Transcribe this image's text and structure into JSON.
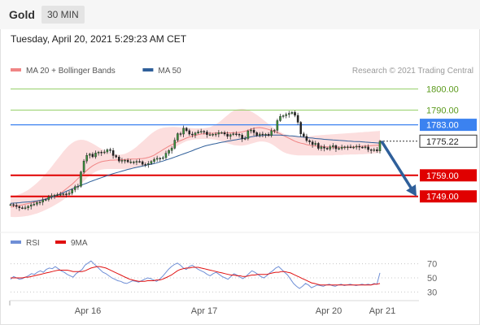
{
  "header": {
    "instrument": "Gold",
    "timeframe": "30 MIN"
  },
  "datetime": "Tuesday, April 20, 2021 5:29:23 AM CET",
  "copyright": "Research © 2021 Trading Central",
  "colors": {
    "ma20": "#f08585",
    "ma50": "#2f5f9a",
    "band_fill": "#fbd8d8",
    "rsi": "#6f8fd6",
    "rsi_ma": "#e01010",
    "green_level": "#96d06a",
    "blue_level": "#3b82f0",
    "red_level": "#e00000",
    "arrow": "#2f5f9a"
  },
  "chart_data": [
    {
      "type": "candlestick",
      "legend": [
        {
          "name": "MA 20 + Bollinger Bands",
          "color": "#f08585"
        },
        {
          "name": "MA 50",
          "color": "#2f5f9a"
        }
      ],
      "xlabels": [
        "Apr 16",
        "Apr 17",
        "Apr 20",
        "Apr 21"
      ],
      "ylim": [
        1735,
        1806
      ],
      "levels": [
        {
          "value": 1800.0,
          "label": "1800.00",
          "kind": "green"
        },
        {
          "value": 1790.0,
          "label": "1790.00",
          "kind": "green"
        },
        {
          "value": 1783.0,
          "label": "1783.00",
          "kind": "blue"
        },
        {
          "value": 1759.0,
          "label": "1759.00",
          "kind": "red"
        },
        {
          "value": 1749.0,
          "label": "1749.00",
          "kind": "red"
        }
      ],
      "last_price": {
        "value": 1775.22,
        "label": "1775.22"
      },
      "close": [
        1745.1,
        1744.8,
        1744.2,
        1743.6,
        1743.5,
        1743.6,
        1744.3,
        1745.0,
        1745.3,
        1746.1,
        1746.3,
        1747.3,
        1747.5,
        1748.8,
        1749.3,
        1749.6,
        1749.9,
        1750.0,
        1750.2,
        1750.0,
        1750.5,
        1752.2,
        1753.6,
        1753.8,
        1760.6,
        1765.8,
        1768.5,
        1769.1,
        1767.8,
        1769.6,
        1770.0,
        1769.7,
        1770.1,
        1771.2,
        1770.8,
        1768.4,
        1767.7,
        1765.8,
        1766.1,
        1766.2,
        1765.4,
        1765.4,
        1765.4,
        1765.6,
        1765.5,
        1764.2,
        1764.1,
        1764.6,
        1765.6,
        1766.6,
        1767.1,
        1767.0,
        1767.4,
        1769.5,
        1770.8,
        1771.9,
        1775.7,
        1778.8,
        1778.6,
        1781.4,
        1780.2,
        1778.6,
        1778.2,
        1779.1,
        1779.7,
        1779.9,
        1779.6,
        1778.3,
        1778.3,
        1778.5,
        1778.6,
        1779.3,
        1779.3,
        1778.6,
        1777.5,
        1778.3,
        1778.7,
        1778.5,
        1778.1,
        1776.3,
        1776.5,
        1780.1,
        1780.5,
        1779.3,
        1777.9,
        1778.6,
        1778.3,
        1778.5,
        1777.9,
        1780.2,
        1780.4,
        1785.0,
        1787.0,
        1787.3,
        1787.9,
        1788.4,
        1788.9,
        1787.5,
        1784.2,
        1778.7,
        1777.5,
        1775.5,
        1774.9,
        1773.6,
        1774.2,
        1771.8,
        1772.5,
        1771.9,
        1771.5,
        1772.6,
        1773.1,
        1771.6,
        1771.8,
        1772.4,
        1772.5,
        1772.5,
        1772.4,
        1772.4,
        1772.8,
        1772.4,
        1772.3,
        1772.5,
        1771.2,
        1770.8,
        1771.2,
        1770.6,
        1775.2
      ],
      "ma20": [
        1744.0,
        1744.2,
        1744.5,
        1744.7,
        1745.0,
        1745.3,
        1745.6,
        1745.9,
        1746.2,
        1746.6,
        1747.0,
        1747.5,
        1747.9,
        1748.3,
        1748.8,
        1749.2,
        1749.7,
        1750.4,
        1751.5,
        1752.6,
        1753.7,
        1754.8,
        1756.1,
        1757.5,
        1758.8,
        1760.0,
        1761.3,
        1762.5,
        1763.5,
        1764.3,
        1765.0,
        1765.5,
        1765.8,
        1766.0,
        1766.2,
        1766.2,
        1766.3,
        1766.3,
        1766.4,
        1766.5,
        1766.6,
        1766.7,
        1766.7,
        1766.8,
        1766.9,
        1767.0,
        1767.2,
        1767.5,
        1768.0,
        1768.6,
        1769.5,
        1770.3,
        1771.2,
        1772.0,
        1772.8,
        1773.5,
        1774.2,
        1774.9,
        1775.5,
        1776.1,
        1776.7,
        1777.2,
        1777.6,
        1778.0,
        1778.3,
        1778.6,
        1778.8,
        1778.9,
        1779.0,
        1779.0,
        1779.1,
        1779.1,
        1779.2,
        1779.2,
        1779.2,
        1779.2,
        1779.2,
        1779.3,
        1779.4,
        1779.6,
        1780.0,
        1780.4,
        1780.9,
        1781.4,
        1781.6,
        1781.7,
        1781.5,
        1781.2,
        1780.8,
        1780.3,
        1779.8,
        1779.3,
        1778.7,
        1778.0,
        1777.3,
        1776.6,
        1775.9,
        1775.2,
        1774.7,
        1774.3,
        1774.0,
        1773.6,
        1773.3,
        1773.1,
        1772.9,
        1772.8,
        1772.7,
        1772.6,
        1772.5,
        1772.4,
        1772.3,
        1772.3,
        1772.3,
        1772.3,
        1772.3,
        1772.3,
        1772.4,
        1772.5,
        1772.6,
        1772.7,
        1772.8,
        1772.9,
        1773.0,
        1773.1,
        1773.2,
        1773.3,
        1773.4
      ],
      "upper_band": [
        1748.7,
        1749.1,
        1749.5,
        1750.0,
        1750.6,
        1751.3,
        1752.1,
        1753.1,
        1754.2,
        1755.4,
        1756.7,
        1758.2,
        1759.8,
        1761.4,
        1763.1,
        1764.9,
        1766.7,
        1768.5,
        1770.3,
        1771.9,
        1773.3,
        1774.4,
        1775.2,
        1775.7,
        1775.9,
        1775.8,
        1775.4,
        1774.8,
        1774.1,
        1773.3,
        1772.4,
        1771.6,
        1770.8,
        1770.1,
        1769.6,
        1769.2,
        1768.9,
        1768.8,
        1768.9,
        1769.2,
        1769.8,
        1770.6,
        1771.5,
        1772.6,
        1773.8,
        1775.0,
        1776.3,
        1777.6,
        1778.8,
        1779.8,
        1780.6,
        1781.2,
        1781.6,
        1781.8,
        1781.9,
        1782.0,
        1782.0,
        1781.9,
        1781.8,
        1781.7,
        1781.6,
        1781.5,
        1781.4,
        1781.3,
        1781.3,
        1781.3,
        1781.4,
        1781.6,
        1781.9,
        1782.5,
        1783.2,
        1784.1,
        1785.2,
        1786.4,
        1787.6,
        1788.7,
        1789.6,
        1790.2,
        1790.5,
        1790.6,
        1790.4,
        1790.0,
        1789.4,
        1788.6,
        1787.7,
        1786.7,
        1785.6,
        1784.5,
        1783.4,
        1782.3,
        1781.3,
        1780.4,
        1779.6,
        1778.9,
        1778.3,
        1777.9,
        1777.6,
        1777.4,
        1777.3,
        1777.3,
        1777.4,
        1777.5,
        1777.6,
        1777.7,
        1777.9,
        1778.0,
        1778.1,
        1778.2,
        1778.3,
        1778.4,
        1778.5,
        1778.6,
        1778.7,
        1778.8,
        1778.9,
        1779.0,
        1779.1,
        1779.2,
        1779.3,
        1779.4,
        1779.5,
        1779.6,
        1779.7,
        1779.8,
        1779.9,
        1780.0,
        1780.1
      ],
      "lower_band": [
        1739.3,
        1739.2,
        1739.2,
        1739.3,
        1739.4,
        1739.6,
        1739.8,
        1740.1,
        1740.5,
        1740.9,
        1741.4,
        1742.0,
        1742.6,
        1743.3,
        1744.0,
        1744.8,
        1745.6,
        1746.5,
        1747.4,
        1748.4,
        1749.5,
        1750.7,
        1752.0,
        1753.4,
        1754.9,
        1756.3,
        1757.7,
        1758.9,
        1759.9,
        1760.7,
        1761.3,
        1761.7,
        1761.9,
        1762.0,
        1762.0,
        1762.0,
        1762.0,
        1762.0,
        1762.0,
        1762.0,
        1762.1,
        1762.2,
        1762.4,
        1762.7,
        1763.1,
        1763.5,
        1764.1,
        1764.7,
        1765.4,
        1766.2,
        1767.0,
        1767.8,
        1768.6,
        1769.5,
        1770.4,
        1771.3,
        1772.2,
        1773.1,
        1773.9,
        1774.6,
        1775.2,
        1775.6,
        1775.9,
        1776.1,
        1776.2,
        1776.3,
        1776.3,
        1776.3,
        1776.2,
        1776.1,
        1775.9,
        1775.6,
        1775.2,
        1774.7,
        1774.2,
        1773.8,
        1773.4,
        1773.2,
        1773.1,
        1773.1,
        1773.3,
        1773.6,
        1774.0,
        1774.4,
        1774.8,
        1775.1,
        1775.1,
        1774.9,
        1774.5,
        1773.9,
        1773.0,
        1772.0,
        1771.0,
        1770.1,
        1769.5,
        1769.1,
        1768.8,
        1768.6,
        1768.5,
        1768.5,
        1768.5,
        1768.5,
        1768.5,
        1768.5,
        1768.5,
        1768.5,
        1768.5,
        1768.5,
        1768.5,
        1768.5,
        1768.5,
        1768.6,
        1768.7,
        1768.7,
        1768.8,
        1768.8,
        1768.9,
        1768.9,
        1768.9,
        1769.0,
        1769.0,
        1769.1,
        1769.2,
        1769.3,
        1769.4,
        1769.5,
        1769.6
      ],
      "ma50": [
        1745.7,
        1745.8,
        1745.9,
        1746.0,
        1746.2,
        1746.3,
        1746.4,
        1746.5,
        1746.7,
        1746.9,
        1747.1,
        1747.4,
        1747.7,
        1748.1,
        1748.6,
        1749.1,
        1749.6,
        1750.2,
        1750.8,
        1751.4,
        1752.0,
        1752.6,
        1753.2,
        1753.8,
        1754.3,
        1754.8,
        1755.3,
        1755.9,
        1756.4,
        1756.9,
        1757.4,
        1757.9,
        1758.4,
        1758.9,
        1759.4,
        1759.8,
        1760.2,
        1760.6,
        1761.0,
        1761.4,
        1761.8,
        1762.1,
        1762.5,
        1762.8,
        1763.1,
        1763.4,
        1763.7,
        1764.0,
        1764.3,
        1764.6,
        1765.0,
        1765.4,
        1765.8,
        1766.3,
        1766.7,
        1767.2,
        1767.7,
        1768.2,
        1768.7,
        1769.2,
        1769.7,
        1770.2,
        1770.7,
        1771.3,
        1771.8,
        1772.3,
        1772.8,
        1773.2,
        1773.5,
        1773.8,
        1774.1,
        1774.4,
        1774.7,
        1774.9,
        1775.2,
        1775.4,
        1775.7,
        1775.9,
        1776.2,
        1776.4,
        1776.7,
        1777.0,
        1777.3,
        1777.5,
        1777.7,
        1777.8,
        1777.9,
        1778.0,
        1778.1,
        1778.1,
        1778.1,
        1778.1,
        1778.1,
        1778.0,
        1777.9,
        1777.8,
        1777.7,
        1777.6,
        1777.4,
        1777.3,
        1777.1,
        1777.0,
        1776.8,
        1776.7,
        1776.5,
        1776.4,
        1776.3,
        1776.1,
        1776.0,
        1775.9,
        1775.8,
        1775.7,
        1775.6,
        1775.5,
        1775.4,
        1775.3,
        1775.2,
        1775.1,
        1775.0,
        1775.0,
        1774.9,
        1774.8,
        1774.7,
        1774.6,
        1774.5,
        1774.4,
        1774.3
      ],
      "forecast": {
        "from": 1775.2,
        "to": 1749.0
      }
    },
    {
      "type": "line",
      "legend": [
        {
          "name": "RSI",
          "color": "#6f8fd6"
        },
        {
          "name": "9MA",
          "color": "#e01010"
        }
      ],
      "ylim": [
        20,
        80
      ],
      "ticks": [
        70,
        50,
        30
      ],
      "series": [
        {
          "name": "RSI",
          "values": [
            48,
            52,
            50,
            48,
            49,
            51,
            53,
            56,
            55,
            58,
            60,
            58,
            62,
            64,
            63,
            66,
            63,
            60,
            58,
            55,
            53,
            51,
            56,
            59,
            62,
            68,
            71,
            74,
            70,
            66,
            62,
            58,
            56,
            53,
            50,
            48,
            46,
            45,
            43,
            42,
            44,
            46,
            45,
            44,
            46,
            48,
            50,
            49,
            47,
            45,
            48,
            52,
            57,
            62,
            66,
            69,
            71,
            68,
            64,
            62,
            66,
            68,
            65,
            62,
            60,
            58,
            55,
            53,
            56,
            58,
            55,
            52,
            50,
            48,
            52,
            56,
            54,
            51,
            49,
            52,
            56,
            60,
            58,
            55,
            52,
            50,
            53,
            57,
            60,
            64,
            66,
            62,
            58,
            54,
            48,
            42,
            38,
            35,
            38,
            42,
            40,
            36,
            38,
            40,
            39,
            38,
            40,
            41,
            39,
            38,
            40,
            41,
            39,
            40,
            41,
            40,
            39,
            40,
            41,
            40,
            41,
            40,
            42,
            41,
            57
          ]
        },
        {
          "name": "9MA",
          "values": [
            50,
            50,
            50,
            50,
            50,
            51,
            51,
            52,
            53,
            54,
            55,
            56,
            57,
            58,
            59,
            60,
            61,
            61,
            61,
            61,
            60,
            59,
            59,
            59,
            59,
            60,
            62,
            64,
            65,
            66,
            66,
            65,
            64,
            62,
            60,
            58,
            56,
            54,
            52,
            50,
            48,
            47,
            46,
            45,
            45,
            45,
            46,
            46,
            46,
            47,
            47,
            48,
            50,
            52,
            54,
            57,
            60,
            62,
            63,
            64,
            64,
            65,
            65,
            65,
            64,
            63,
            62,
            61,
            60,
            59,
            58,
            57,
            56,
            55,
            54,
            54,
            53,
            53,
            52,
            52,
            53,
            54,
            54,
            55,
            55,
            55,
            55,
            56,
            57,
            58,
            58,
            59,
            59,
            58,
            57,
            55,
            53,
            51,
            49,
            47,
            45,
            43,
            42,
            41,
            40,
            40,
            40,
            40,
            40,
            40,
            40,
            40,
            40,
            40,
            40,
            40,
            40,
            40,
            40,
            40,
            40,
            40,
            41,
            41,
            42
          ]
        }
      ]
    }
  ]
}
